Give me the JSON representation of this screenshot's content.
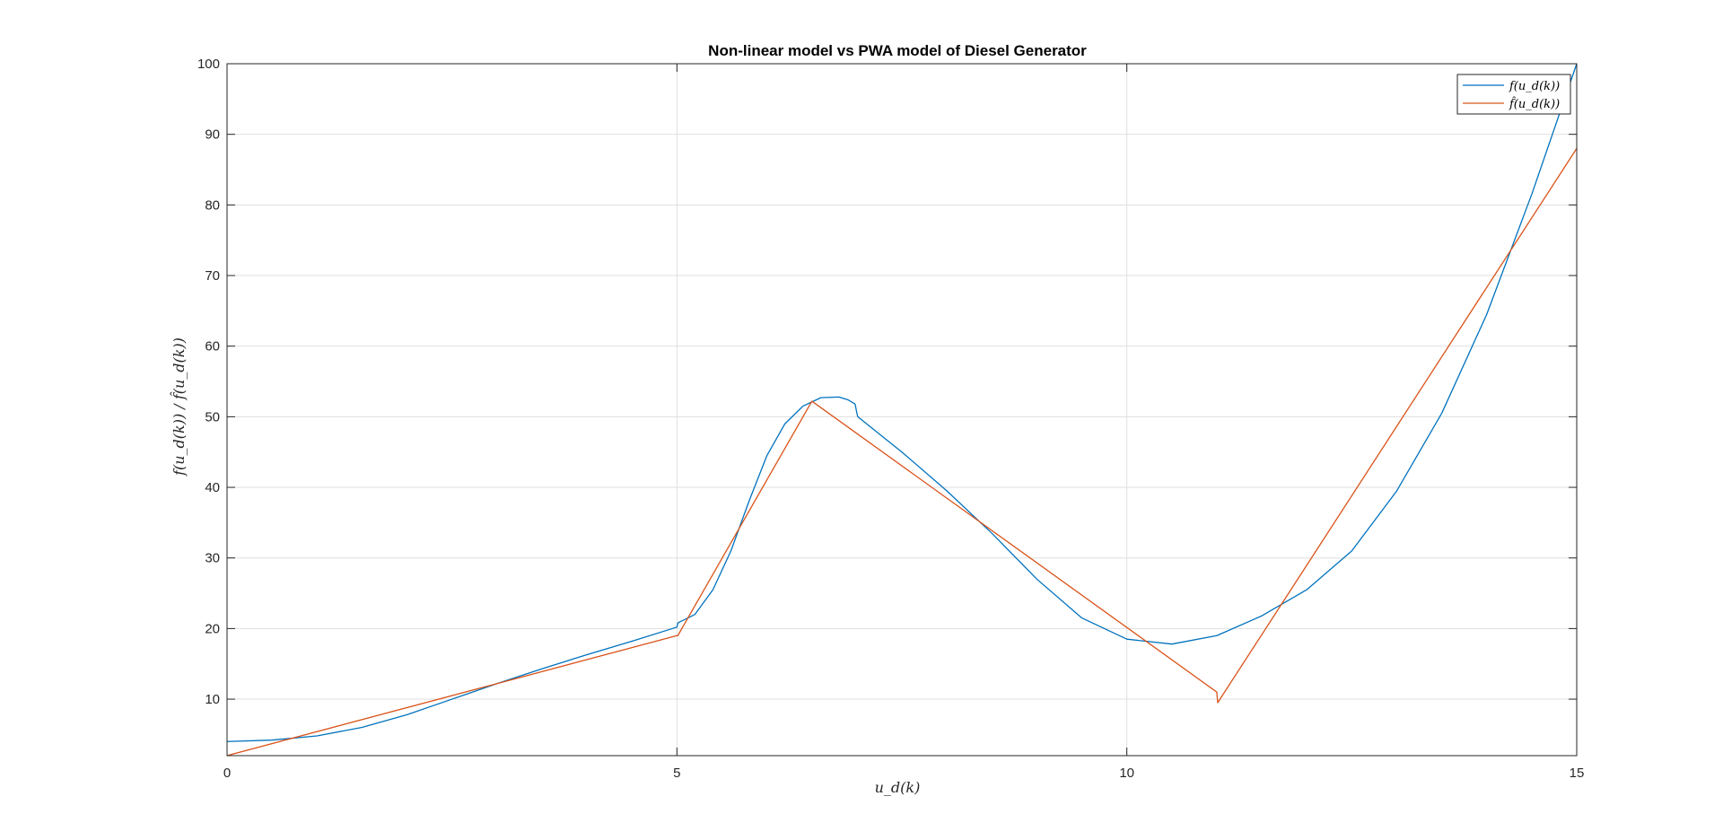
{
  "chart_data": {
    "type": "line",
    "title": "Non-linear model vs PWA model of Diesel Generator",
    "xlabel": "u_d(k)",
    "ylabel": "f(u_d(k)) / f̂(u_d(k))",
    "xlim": [
      0,
      15
    ],
    "ylim": [
      2,
      100
    ],
    "grid": true,
    "legend_position": "top-right",
    "x_ticks": [
      0,
      5,
      10,
      15
    ],
    "y_ticks": [
      10,
      20,
      30,
      40,
      50,
      60,
      70,
      80,
      90,
      100
    ],
    "series": [
      {
        "name": "f(u_d(k))",
        "color": "#0072BD",
        "x": [
          0,
          0.5,
          1,
          1.5,
          2,
          2.5,
          3,
          3.5,
          4,
          4.5,
          5,
          5.01,
          5.2,
          5.4,
          5.6,
          5.8,
          6.0,
          6.2,
          6.4,
          6.6,
          6.8,
          6.9,
          6.98,
          7.0,
          7.01,
          7.5,
          8.0,
          8.5,
          9.0,
          9.5,
          10.0,
          10.5,
          11.0,
          11.5,
          12.0,
          12.5,
          13.0,
          13.5,
          14.0,
          14.5,
          15.0
        ],
        "y": [
          4,
          4.2,
          4.8,
          6.0,
          7.8,
          10.0,
          12.2,
          14.3,
          16.3,
          18.2,
          20.2,
          20.8,
          22.0,
          25.5,
          31.0,
          38.0,
          44.5,
          49.0,
          51.5,
          52.7,
          52.8,
          52.4,
          51.8,
          50.5,
          50.0,
          45.0,
          39.5,
          33.5,
          27.0,
          21.5,
          18.5,
          17.8,
          19.0,
          21.8,
          25.5,
          31.0,
          39.5,
          50.5,
          64.5,
          81.5,
          100
        ]
      },
      {
        "name": "f̂(u_d(k))",
        "color": "#D95319",
        "x": [
          0,
          5.0,
          5.01,
          6.5,
          11.0,
          11.01,
          15.0
        ],
        "y": [
          2,
          19.0,
          19.0,
          52.2,
          11.0,
          9.5,
          88
        ]
      }
    ]
  }
}
